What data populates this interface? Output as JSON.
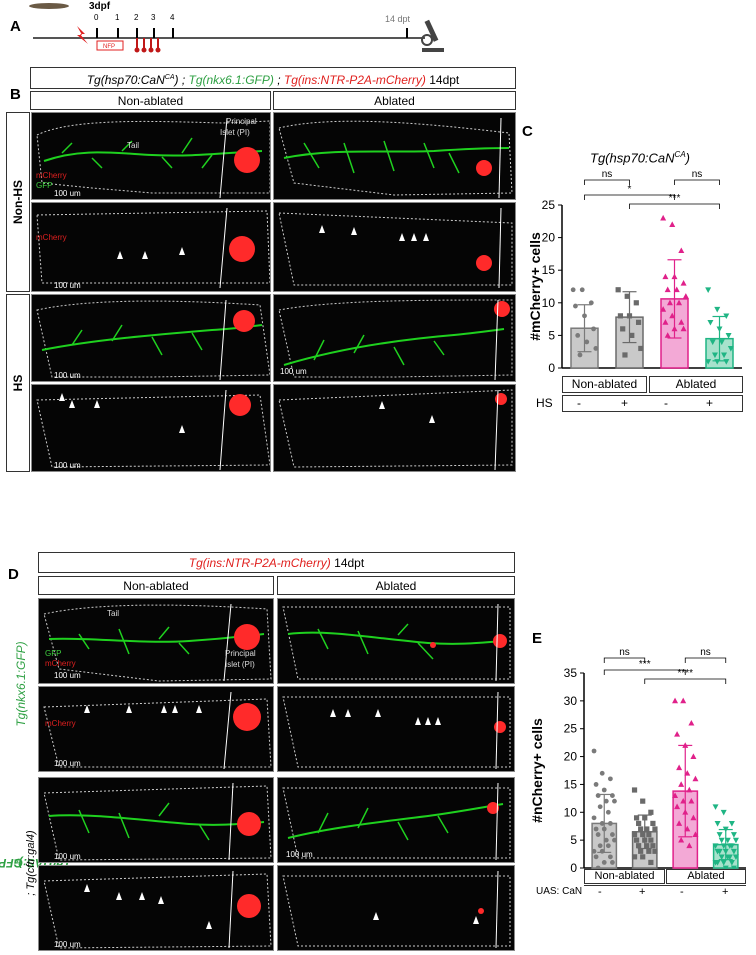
{
  "panelA": {
    "letter": "A",
    "stage": "3dpf",
    "timepoints": [
      "0",
      "1",
      "2",
      "3",
      "4"
    ],
    "treatment": "NFP",
    "endpoint": "14 dpt"
  },
  "panelB": {
    "letter": "B",
    "title_parts": [
      "Tg(hsp70:CaN",
      "CA",
      ") ; ",
      "Tg(nkx6.1:GFP)",
      " ; ",
      "Tg(ins:NTR-P2A-mCherry)",
      " 14dpt"
    ],
    "col_headers": [
      "Non-ablated",
      "Ablated"
    ],
    "row_labels": [
      "Non-HS",
      "HS"
    ],
    "labels": {
      "tail": "Tail",
      "principal": "Principal",
      "islet": "Islet (PI)",
      "mcherry": "mCherry",
      "gfp": "GFP",
      "scale": "100 um"
    }
  },
  "panelC": {
    "letter": "C",
    "chart_title_main": "Tg(hsp70:CaN",
    "chart_title_sup": "CA",
    "chart_title_end": ")",
    "ylabel": "#mCherry+ cells",
    "groups": [
      "Non-ablated",
      "Ablated"
    ],
    "factor_label": "HS",
    "signs": [
      "-",
      "+",
      "-",
      "+"
    ],
    "sig": [
      "ns",
      "ns",
      "*",
      "***"
    ]
  },
  "panelD": {
    "letter": "D",
    "title_parts": [
      "Tg(ins:NTR-P2A-mCherry)",
      " 14dpt"
    ],
    "col_headers": [
      "Non-ablated",
      "Ablated"
    ],
    "row_label_1": "Tg(nkx6.1:GFP)",
    "row_label_2a": "Tg(UAS:GFP-CaN",
    "row_label_2sup": "CA",
    "row_label_2b": ")",
    "row_label_2c": "; Tg(cftr:gal4)",
    "labels": {
      "tail": "Tail",
      "principal": "Principal",
      "islet": "Islet (PI)",
      "mcherry": "mCherry",
      "gfp": "GFP",
      "scale": "100 um"
    }
  },
  "panelE": {
    "letter": "E",
    "ylabel": "#nCherry+ cells",
    "groups": [
      "Non-ablated",
      "Ablated"
    ],
    "factor_label": "UAS: CaN",
    "signs": [
      "-",
      "+",
      "-",
      "+"
    ],
    "sig": [
      "ns",
      "ns",
      "***",
      "****"
    ]
  },
  "chart_data": [
    {
      "type": "bar",
      "title": "Tg(hsp70:CaNCA)",
      "ylabel": "#mCherry+ cells",
      "categories": [
        "Non-ablated HS-",
        "Non-ablated HS+",
        "Ablated HS-",
        "Ablated HS+"
      ],
      "values": [
        6.1,
        7.8,
        10.6,
        4.5
      ],
      "errors": [
        3.6,
        3.9,
        6.0,
        3.4
      ],
      "colors": [
        "#c9c9c9",
        "#c9c9c9",
        "#f3a9d6",
        "#a7e2cc"
      ],
      "edge_colors": [
        "#7a7a7a",
        "#6a6a6a",
        "#e0218a",
        "#1fb584"
      ],
      "ylim": [
        0,
        25
      ],
      "yticks": [
        0,
        5,
        10,
        15,
        20,
        25
      ],
      "points": [
        [
          12,
          12,
          10,
          9.5,
          8,
          6,
          5,
          4,
          3,
          2
        ],
        [
          12,
          11,
          10,
          8,
          8,
          7,
          6,
          5,
          3,
          2
        ],
        [
          23,
          22,
          18,
          14,
          14,
          13,
          12,
          12,
          11,
          10,
          10,
          9,
          8,
          7,
          7,
          6,
          6,
          5
        ],
        [
          12,
          9,
          8,
          7,
          6,
          5,
          4,
          4,
          3,
          2,
          2,
          1,
          1,
          1
        ]
      ]
    },
    {
      "type": "bar",
      "title": "",
      "ylabel": "#nCherry+ cells",
      "categories": [
        "Non-ablated UAS:CaN-",
        "Non-ablated UAS:CaN+",
        "Ablated UAS:CaN-",
        "Ablated UAS:CaN+"
      ],
      "values": [
        8.0,
        6.5,
        13.8,
        4.2
      ],
      "errors": [
        5.2,
        3.0,
        8.2,
        2.7
      ],
      "colors": [
        "#c9c9c9",
        "#c9c9c9",
        "#f3a9d6",
        "#a7e2cc"
      ],
      "edge_colors": [
        "#7a7a7a",
        "#6a6a6a",
        "#e0218a",
        "#1fb584"
      ],
      "ylim": [
        0,
        35
      ],
      "yticks": [
        0,
        5,
        10,
        15,
        20,
        25,
        30,
        35
      ],
      "points": [
        [
          21,
          17,
          16,
          15,
          14,
          13,
          13,
          12,
          12,
          11,
          10,
          9,
          8,
          8,
          7,
          7,
          6,
          6,
          5,
          5,
          4,
          4,
          3,
          3,
          2,
          2,
          1,
          1,
          0
        ],
        [
          14,
          12,
          10,
          9,
          9,
          8,
          8,
          7,
          7,
          7,
          6,
          6,
          6,
          5,
          5,
          5,
          4,
          4,
          4,
          3,
          3,
          3,
          2,
          2,
          1
        ],
        [
          30,
          30,
          26,
          24,
          22,
          20,
          18,
          17,
          16,
          15,
          14,
          13,
          12,
          12,
          11,
          10,
          9,
          8,
          7,
          6,
          5,
          4
        ],
        [
          11,
          10,
          8,
          8,
          7,
          6,
          6,
          5,
          5,
          5,
          4,
          4,
          4,
          4,
          3,
          3,
          3,
          3,
          2,
          2,
          2,
          2,
          1,
          1,
          1,
          1,
          0,
          0
        ]
      ]
    }
  ]
}
